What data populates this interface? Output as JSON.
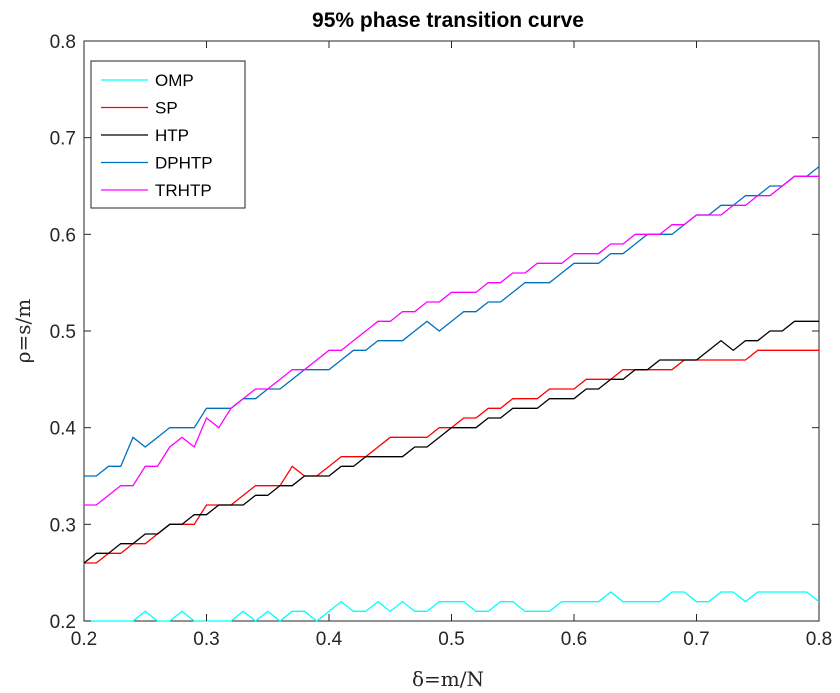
{
  "chart_data": {
    "type": "line",
    "title": "95% phase transition curve",
    "xlabel": "δ=m/N",
    "ylabel": "ρ=s/m",
    "xlim": [
      0.2,
      0.8
    ],
    "ylim": [
      0.2,
      0.8
    ],
    "xticks": [
      "0.2",
      "0.3",
      "0.4",
      "0.5",
      "0.6",
      "0.7",
      "0.8"
    ],
    "yticks": [
      "0.2",
      "0.3",
      "0.4",
      "0.5",
      "0.6",
      "0.7",
      "0.8"
    ],
    "grid": false,
    "legend_position": "top-left",
    "x": [
      0.2,
      0.21,
      0.22,
      0.23,
      0.24,
      0.25,
      0.26,
      0.27,
      0.28,
      0.29,
      0.3,
      0.31,
      0.32,
      0.33,
      0.34,
      0.35,
      0.36,
      0.37,
      0.38,
      0.39,
      0.4,
      0.41,
      0.42,
      0.43,
      0.44,
      0.45,
      0.46,
      0.47,
      0.48,
      0.49,
      0.5,
      0.51,
      0.52,
      0.53,
      0.54,
      0.55,
      0.56,
      0.57,
      0.58,
      0.59,
      0.6,
      0.61,
      0.62,
      0.63,
      0.64,
      0.65,
      0.66,
      0.67,
      0.68,
      0.69,
      0.7,
      0.71,
      0.72,
      0.73,
      0.74,
      0.75,
      0.76,
      0.77,
      0.78,
      0.79,
      0.8
    ],
    "series": [
      {
        "name": "OMP",
        "color": "#00FFFF",
        "values": [
          0.2,
          0.2,
          0.2,
          0.2,
          0.2,
          0.21,
          0.2,
          0.2,
          0.21,
          0.2,
          0.2,
          0.2,
          0.2,
          0.21,
          0.2,
          0.21,
          0.2,
          0.21,
          0.21,
          0.2,
          0.21,
          0.22,
          0.21,
          0.21,
          0.22,
          0.21,
          0.22,
          0.21,
          0.21,
          0.22,
          0.22,
          0.22,
          0.21,
          0.21,
          0.22,
          0.22,
          0.21,
          0.21,
          0.21,
          0.22,
          0.22,
          0.22,
          0.22,
          0.23,
          0.22,
          0.22,
          0.22,
          0.22,
          0.23,
          0.23,
          0.22,
          0.22,
          0.23,
          0.23,
          0.22,
          0.23,
          0.23,
          0.23,
          0.23,
          0.23,
          0.22
        ]
      },
      {
        "name": "SP",
        "color": "#FF0000",
        "values": [
          0.26,
          0.26,
          0.27,
          0.27,
          0.28,
          0.28,
          0.29,
          0.3,
          0.3,
          0.3,
          0.32,
          0.32,
          0.32,
          0.33,
          0.34,
          0.34,
          0.34,
          0.36,
          0.35,
          0.35,
          0.36,
          0.37,
          0.37,
          0.37,
          0.38,
          0.39,
          0.39,
          0.39,
          0.39,
          0.4,
          0.4,
          0.41,
          0.41,
          0.42,
          0.42,
          0.43,
          0.43,
          0.43,
          0.44,
          0.44,
          0.44,
          0.45,
          0.45,
          0.45,
          0.46,
          0.46,
          0.46,
          0.46,
          0.46,
          0.47,
          0.47,
          0.47,
          0.47,
          0.47,
          0.47,
          0.48,
          0.48,
          0.48,
          0.48,
          0.48,
          0.48
        ]
      },
      {
        "name": "HTP",
        "color": "#000000",
        "values": [
          0.26,
          0.27,
          0.27,
          0.28,
          0.28,
          0.29,
          0.29,
          0.3,
          0.3,
          0.31,
          0.31,
          0.32,
          0.32,
          0.32,
          0.33,
          0.33,
          0.34,
          0.34,
          0.35,
          0.35,
          0.35,
          0.36,
          0.36,
          0.37,
          0.37,
          0.37,
          0.37,
          0.38,
          0.38,
          0.39,
          0.4,
          0.4,
          0.4,
          0.41,
          0.41,
          0.42,
          0.42,
          0.42,
          0.43,
          0.43,
          0.43,
          0.44,
          0.44,
          0.45,
          0.45,
          0.46,
          0.46,
          0.47,
          0.47,
          0.47,
          0.47,
          0.48,
          0.49,
          0.48,
          0.49,
          0.49,
          0.5,
          0.5,
          0.51,
          0.51,
          0.51
        ]
      },
      {
        "name": "DPHTP",
        "color": "#0072BD",
        "values": [
          0.35,
          0.35,
          0.36,
          0.36,
          0.39,
          0.38,
          0.39,
          0.4,
          0.4,
          0.4,
          0.42,
          0.42,
          0.42,
          0.43,
          0.43,
          0.44,
          0.44,
          0.45,
          0.46,
          0.46,
          0.46,
          0.47,
          0.48,
          0.48,
          0.49,
          0.49,
          0.49,
          0.5,
          0.51,
          0.5,
          0.51,
          0.52,
          0.52,
          0.53,
          0.53,
          0.54,
          0.55,
          0.55,
          0.55,
          0.56,
          0.57,
          0.57,
          0.57,
          0.58,
          0.58,
          0.59,
          0.6,
          0.6,
          0.6,
          0.61,
          0.62,
          0.62,
          0.63,
          0.63,
          0.64,
          0.64,
          0.65,
          0.65,
          0.66,
          0.66,
          0.67
        ]
      },
      {
        "name": "TRHTP",
        "color": "#FF00FF",
        "values": [
          0.32,
          0.32,
          0.33,
          0.34,
          0.34,
          0.36,
          0.36,
          0.38,
          0.39,
          0.38,
          0.41,
          0.4,
          0.42,
          0.43,
          0.44,
          0.44,
          0.45,
          0.46,
          0.46,
          0.47,
          0.48,
          0.48,
          0.49,
          0.5,
          0.51,
          0.51,
          0.52,
          0.52,
          0.53,
          0.53,
          0.54,
          0.54,
          0.54,
          0.55,
          0.55,
          0.56,
          0.56,
          0.57,
          0.57,
          0.57,
          0.58,
          0.58,
          0.58,
          0.59,
          0.59,
          0.6,
          0.6,
          0.6,
          0.61,
          0.61,
          0.62,
          0.62,
          0.62,
          0.63,
          0.63,
          0.64,
          0.64,
          0.65,
          0.66,
          0.66,
          0.66
        ]
      }
    ]
  }
}
